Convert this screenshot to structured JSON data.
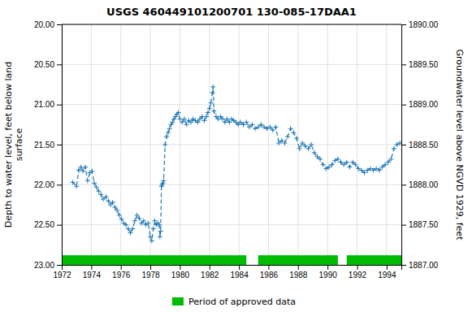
{
  "chart_data": {
    "type": "line",
    "title": "USGS 460449101200701 130-085-17DAA1",
    "y_label": "Depth to water level, feet below land\nsurface",
    "y2_label": "Groundwater level above NGVD 1929, feet",
    "x": [
      1972.75,
      1973.0,
      1973.15,
      1973.3,
      1973.45,
      1973.6,
      1973.75,
      1973.9,
      1974.05,
      1974.2,
      1974.35,
      1974.5,
      1974.65,
      1974.8,
      1975.0,
      1975.15,
      1975.3,
      1975.45,
      1975.6,
      1975.75,
      1975.9,
      1976.05,
      1976.2,
      1976.35,
      1976.5,
      1976.65,
      1976.8,
      1976.95,
      1977.1,
      1977.25,
      1977.4,
      1977.55,
      1977.7,
      1977.85,
      1978.0,
      1978.1,
      1978.2,
      1978.3,
      1978.4,
      1978.5,
      1978.6,
      1978.65,
      1978.7,
      1978.75,
      1978.8,
      1978.85,
      1978.9,
      1979.0,
      1979.1,
      1979.2,
      1979.3,
      1979.4,
      1979.5,
      1979.6,
      1979.7,
      1979.8,
      1979.9,
      1980.0,
      1980.15,
      1980.3,
      1980.45,
      1980.6,
      1980.75,
      1980.9,
      1981.05,
      1981.2,
      1981.35,
      1981.5,
      1981.65,
      1981.8,
      1981.9,
      1982.0,
      1982.1,
      1982.2,
      1982.25,
      1982.3,
      1982.45,
      1982.6,
      1982.75,
      1982.9,
      1983.05,
      1983.2,
      1983.35,
      1983.5,
      1983.65,
      1983.8,
      1983.95,
      1984.1,
      1984.3,
      1984.5,
      1984.7,
      1984.9,
      1985.1,
      1985.3,
      1985.5,
      1985.7,
      1985.9,
      1986.1,
      1986.3,
      1986.5,
      1986.7,
      1986.9,
      1987.1,
      1987.3,
      1987.5,
      1987.7,
      1987.9,
      1988.1,
      1988.3,
      1988.5,
      1988.7,
      1988.9,
      1989.1,
      1989.3,
      1989.5,
      1989.7,
      1989.9,
      1990.1,
      1990.3,
      1990.5,
      1990.7,
      1990.9,
      1991.1,
      1991.3,
      1991.5,
      1991.7,
      1991.9,
      1992.1,
      1992.3,
      1992.5,
      1992.7,
      1992.9,
      1993.1,
      1993.3,
      1993.5,
      1993.7,
      1993.9,
      1994.1,
      1994.3,
      1994.5,
      1994.7,
      1994.9
    ],
    "values": [
      21.97,
      22.02,
      21.82,
      21.78,
      21.83,
      21.78,
      21.95,
      21.85,
      21.83,
      21.98,
      22.03,
      22.08,
      22.12,
      22.18,
      22.15,
      22.2,
      22.25,
      22.22,
      22.28,
      22.32,
      22.38,
      22.43,
      22.48,
      22.5,
      22.55,
      22.6,
      22.55,
      22.45,
      22.38,
      22.42,
      22.48,
      22.45,
      22.5,
      22.48,
      22.65,
      22.7,
      22.55,
      22.45,
      22.5,
      22.48,
      22.5,
      22.65,
      22.58,
      22.02,
      22.0,
      21.98,
      21.95,
      21.5,
      21.4,
      21.35,
      21.3,
      21.25,
      21.22,
      21.18,
      21.15,
      21.12,
      21.1,
      21.18,
      21.22,
      21.18,
      21.25,
      21.2,
      21.22,
      21.18,
      21.2,
      21.22,
      21.18,
      21.15,
      21.2,
      21.15,
      21.1,
      21.05,
      20.98,
      20.85,
      20.78,
      21.08,
      21.15,
      21.18,
      21.15,
      21.18,
      21.22,
      21.18,
      21.22,
      21.18,
      21.2,
      21.22,
      21.25,
      21.22,
      21.25,
      21.22,
      21.28,
      21.25,
      21.3,
      21.28,
      21.25,
      21.28,
      21.3,
      21.28,
      21.32,
      21.28,
      21.48,
      21.45,
      21.48,
      21.4,
      21.3,
      21.35,
      21.42,
      21.55,
      21.48,
      21.52,
      21.55,
      21.5,
      21.6,
      21.65,
      21.68,
      21.75,
      21.8,
      21.78,
      21.75,
      21.7,
      21.68,
      21.72,
      21.75,
      21.72,
      21.78,
      21.72,
      21.75,
      21.8,
      21.82,
      21.85,
      21.82,
      21.8,
      21.82,
      21.8,
      21.82,
      21.78,
      21.75,
      21.72,
      21.68,
      21.55,
      21.5,
      21.48
    ],
    "marker": "plus",
    "line_style": "dashed",
    "xlim": [
      1972,
      1995
    ],
    "xticks": [
      1972,
      1974,
      1976,
      1978,
      1980,
      1982,
      1984,
      1986,
      1988,
      1990,
      1992,
      1994
    ],
    "ylim": [
      23.0,
      20.0
    ],
    "yticks": [
      {
        "value": 20.0,
        "label": "20.00"
      },
      {
        "value": 20.5,
        "label": "20.50"
      },
      {
        "value": 21.0,
        "label": "21.00"
      },
      {
        "value": 21.5,
        "label": "21.50"
      },
      {
        "value": 22.0,
        "label": "22.00"
      },
      {
        "value": 22.5,
        "label": "22.50"
      },
      {
        "value": 23.0,
        "label": "23.00"
      }
    ],
    "y2lim": [
      1887.0,
      1890.0
    ],
    "y2ticks": [
      {
        "value": 1887.0,
        "label": "1887.00"
      },
      {
        "value": 1887.5,
        "label": "1887.50"
      },
      {
        "value": 1888.0,
        "label": "1888.00"
      },
      {
        "value": 1888.5,
        "label": "1888.50"
      },
      {
        "value": 1889.0,
        "label": "1889.00"
      },
      {
        "value": 1889.5,
        "label": "1889.50"
      },
      {
        "value": 1890.0,
        "label": "1890.00"
      }
    ],
    "grid": true,
    "legend": "bottom",
    "approved_periods": {
      "name": "Period of approved data",
      "color": "#00bb00",
      "values": [
        [
          1972.0,
          1984.5
        ],
        [
          1985.3,
          1990.7
        ],
        [
          1991.3,
          1995.0
        ]
      ]
    }
  }
}
